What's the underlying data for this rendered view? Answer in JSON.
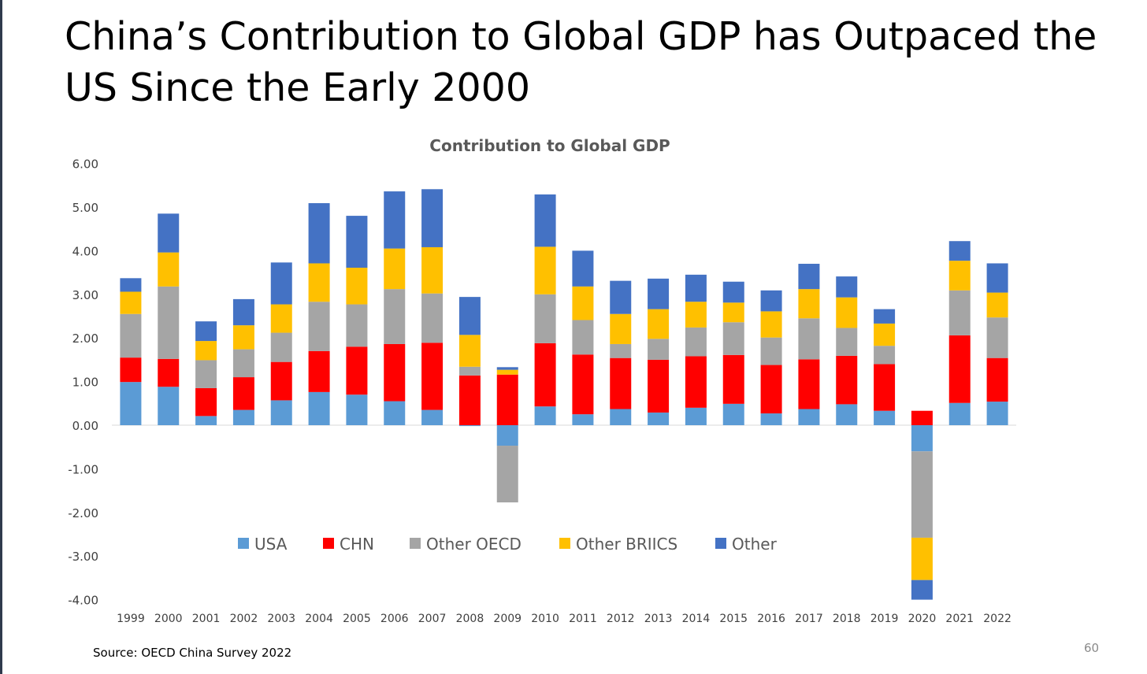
{
  "slide": {
    "title": "China’s Contribution to Global GDP has Outpaced the US Since the Early 2000",
    "source": "Source: OECD China Survey 2022",
    "page_number": "60"
  },
  "chart_data": {
    "type": "bar",
    "stacked": true,
    "title": "Contribution to Global GDP",
    "xlabel": "",
    "ylabel": "",
    "ylim": [
      -4.0,
      6.0
    ],
    "yticks": [
      "6.00",
      "5.00",
      "4.00",
      "3.00",
      "2.00",
      "1.00",
      "0.00",
      "-1.00",
      "-2.00",
      "-3.00",
      "-4.00"
    ],
    "grid": false,
    "legend_position": "inside-lower-left",
    "categories": [
      "1999",
      "2000",
      "2001",
      "2002",
      "2003",
      "2004",
      "2005",
      "2006",
      "2007",
      "2008",
      "2009",
      "2010",
      "2011",
      "2012",
      "2013",
      "2014",
      "2015",
      "2016",
      "2017",
      "2018",
      "2019",
      "2020",
      "2021",
      "2022"
    ],
    "series": [
      {
        "name": "USA",
        "color": "#5b9bd5",
        "values": [
          0.99,
          0.88,
          0.21,
          0.35,
          0.57,
          0.76,
          0.7,
          0.55,
          0.35,
          -0.02,
          -0.47,
          0.43,
          0.25,
          0.37,
          0.29,
          0.4,
          0.49,
          0.27,
          0.37,
          0.48,
          0.33,
          -0.6,
          0.51,
          0.54
        ]
      },
      {
        "name": "CHN",
        "color": "#ff0000",
        "values": [
          0.56,
          0.64,
          0.64,
          0.75,
          0.88,
          0.94,
          1.1,
          1.31,
          1.54,
          1.14,
          1.16,
          1.45,
          1.37,
          1.17,
          1.21,
          1.18,
          1.12,
          1.11,
          1.14,
          1.11,
          1.07,
          0.33,
          1.55,
          1.0
        ]
      },
      {
        "name": "Other OECD",
        "color": "#a5a5a5",
        "values": [
          1.0,
          1.66,
          0.64,
          0.64,
          0.67,
          1.13,
          0.97,
          1.26,
          1.13,
          0.2,
          -1.3,
          1.12,
          0.79,
          0.32,
          0.48,
          0.66,
          0.75,
          0.63,
          0.94,
          0.64,
          0.42,
          -1.98,
          1.03,
          0.93
        ]
      },
      {
        "name": "Other BRIICS",
        "color": "#ffc000",
        "values": [
          0.51,
          0.78,
          0.44,
          0.55,
          0.65,
          0.88,
          0.84,
          0.93,
          1.06,
          0.73,
          0.11,
          1.09,
          0.77,
          0.69,
          0.68,
          0.59,
          0.45,
          0.6,
          0.67,
          0.7,
          0.51,
          -0.97,
          0.68,
          0.57
        ]
      },
      {
        "name": "Other",
        "color": "#4472c4",
        "values": [
          0.31,
          0.89,
          0.45,
          0.6,
          0.96,
          1.38,
          1.19,
          1.31,
          1.33,
          0.87,
          0.06,
          1.2,
          0.82,
          0.76,
          0.7,
          0.62,
          0.48,
          0.48,
          0.58,
          0.48,
          0.33,
          -0.45,
          0.45,
          0.67
        ]
      }
    ]
  }
}
